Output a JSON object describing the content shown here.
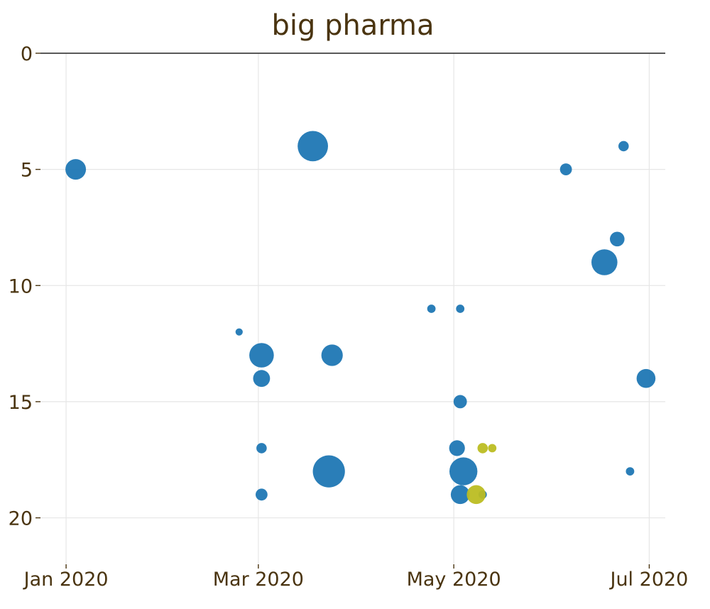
{
  "chart_data": {
    "type": "scatter",
    "title": "big pharma",
    "xlabel": "",
    "ylabel": "",
    "x_axis": {
      "type": "date",
      "range": [
        "2019-12-24",
        "2020-07-06"
      ],
      "ticks": [
        {
          "value": "2020-01-01",
          "label": "Jan 2020"
        },
        {
          "value": "2020-03-01",
          "label": "Mar 2020"
        },
        {
          "value": "2020-05-01",
          "label": "May 2020"
        },
        {
          "value": "2020-07-01",
          "label": "Jul 2020"
        }
      ]
    },
    "y_axis": {
      "reversed": true,
      "range": [
        0,
        22
      ],
      "ticks": [
        {
          "value": 0,
          "label": "0"
        },
        {
          "value": 5,
          "label": "5"
        },
        {
          "value": 10,
          "label": "10"
        },
        {
          "value": 15,
          "label": "15"
        },
        {
          "value": 20,
          "label": "20"
        }
      ]
    },
    "grid": true,
    "marker_size_encoding": "bubble area",
    "colors": {
      "series_a": "#1f77b4",
      "series_b": "#bcbd22"
    },
    "series": [
      {
        "color": "#1f77b4",
        "points": [
          {
            "x": "2020-01-04",
            "y": 5,
            "size": 12
          },
          {
            "x": "2020-03-18",
            "y": 4,
            "size": 26
          },
          {
            "x": "2020-02-24",
            "y": 12,
            "size": 1.5
          },
          {
            "x": "2020-03-02",
            "y": 13,
            "size": 17
          },
          {
            "x": "2020-03-02",
            "y": 14,
            "size": 8
          },
          {
            "x": "2020-03-24",
            "y": 13,
            "size": 13
          },
          {
            "x": "2020-03-02",
            "y": 17,
            "size": 3
          },
          {
            "x": "2020-03-02",
            "y": 19,
            "size": 4
          },
          {
            "x": "2020-03-23",
            "y": 18,
            "size": 29
          },
          {
            "x": "2020-04-24",
            "y": 11,
            "size": 2
          },
          {
            "x": "2020-05-03",
            "y": 11,
            "size": 2
          },
          {
            "x": "2020-05-03",
            "y": 15,
            "size": 5
          },
          {
            "x": "2020-05-02",
            "y": 17,
            "size": 7
          },
          {
            "x": "2020-05-04",
            "y": 18,
            "size": 22
          },
          {
            "x": "2020-05-03",
            "y": 19,
            "size": 10
          },
          {
            "x": "2020-05-10",
            "y": 19,
            "size": 2
          },
          {
            "x": "2020-06-05",
            "y": 5,
            "size": 4
          },
          {
            "x": "2020-06-23",
            "y": 4,
            "size": 3
          },
          {
            "x": "2020-06-21",
            "y": 8,
            "size": 6
          },
          {
            "x": "2020-06-17",
            "y": 9,
            "size": 19
          },
          {
            "x": "2020-06-25",
            "y": 18,
            "size": 2
          },
          {
            "x": "2020-06-30",
            "y": 14,
            "size": 10
          }
        ]
      },
      {
        "color": "#bcbd22",
        "points": [
          {
            "x": "2020-05-08",
            "y": 19,
            "size": 10
          },
          {
            "x": "2020-05-10",
            "y": 17,
            "size": 3
          },
          {
            "x": "2020-05-13",
            "y": 17,
            "size": 2
          }
        ]
      }
    ]
  }
}
